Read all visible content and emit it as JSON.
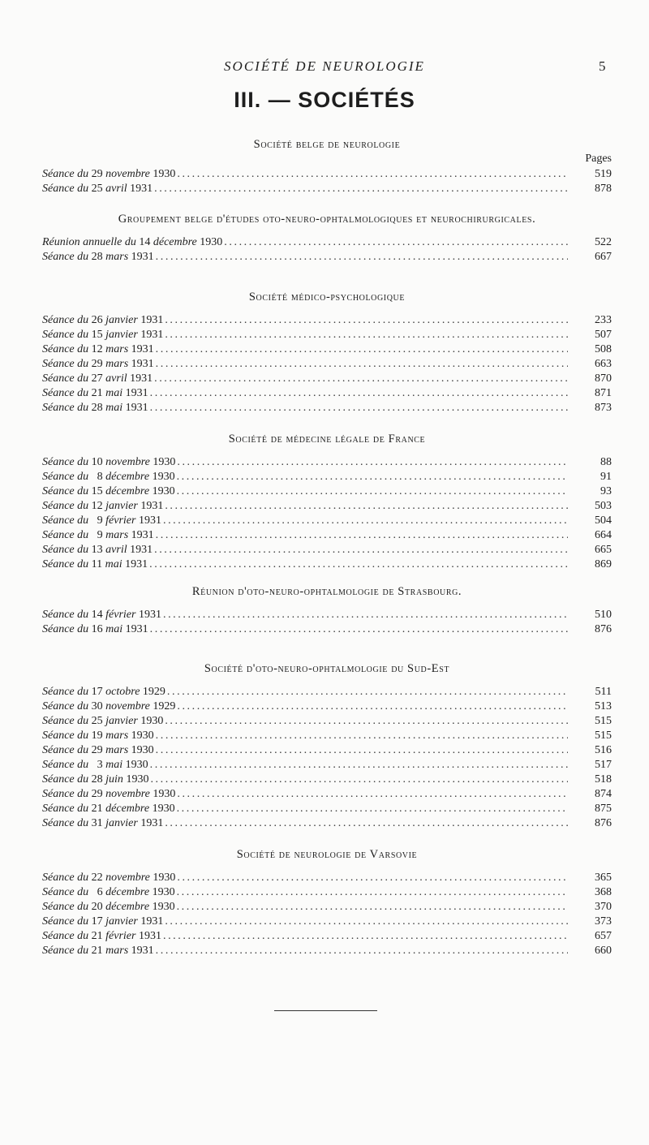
{
  "header": {
    "running_title": "SOCIÉTÉ DE NEUROLOGIE",
    "page_number": "5"
  },
  "title": "III. — SOCIÉTÉS",
  "pages_label": "Pages",
  "sections": [
    {
      "heading": "Société belge de neurologie",
      "show_pages": true,
      "entries": [
        {
          "prefix": "Séance du",
          "day": "29",
          "month": "novembre",
          "year": "1930",
          "page": "519"
        },
        {
          "prefix": "Séance du",
          "day": "25",
          "month": "avril",
          "year": "1931",
          "page": "878"
        }
      ]
    },
    {
      "heading": "Groupement belge d'études oto-neuro-ophtalmologiques et neurochirurgicales.",
      "entries": [
        {
          "prefix": "Réunion annuelle du",
          "day": "14",
          "month": "décembre",
          "year": "1930",
          "page": "522"
        },
        {
          "prefix": "Séance du",
          "day": "28",
          "month": "mars",
          "year": "1931",
          "page": "667"
        }
      ]
    },
    {
      "heading": "Société médico-psychologique",
      "entries": [
        {
          "prefix": "Séance du",
          "day": "26",
          "month": "janvier",
          "year": "1931",
          "page": "233"
        },
        {
          "prefix": "Séance du",
          "day": "15",
          "month": "janvier",
          "year": "1931",
          "page": "507"
        },
        {
          "prefix": "Séance du",
          "day": "12",
          "month": "mars",
          "year": "1931",
          "page": "508"
        },
        {
          "prefix": "Séance du",
          "day": "29",
          "month": "mars",
          "year": "1931",
          "page": "663"
        },
        {
          "prefix": "Séance du",
          "day": "27",
          "month": "avril",
          "year": "1931",
          "page": "870"
        },
        {
          "prefix": "Séance du",
          "day": "21",
          "month": "mai",
          "year": "1931",
          "page": "871"
        },
        {
          "prefix": "Séance du",
          "day": "28",
          "month": "mai",
          "year": "1931",
          "page": "873"
        }
      ]
    },
    {
      "heading": "Société de médecine légale de France",
      "entries": [
        {
          "prefix": "Séance du",
          "day": "10",
          "month": "novembre",
          "year": "1930",
          "page": "88"
        },
        {
          "prefix": "Séance du",
          "day": "8",
          "month": "décembre",
          "year": "1930",
          "page": "91"
        },
        {
          "prefix": "Séance du",
          "day": "15",
          "month": "décembre",
          "year": "1930",
          "page": "93"
        },
        {
          "prefix": "Séance du",
          "day": "12",
          "month": "janvier",
          "year": "1931",
          "page": "503"
        },
        {
          "prefix": "Séance du",
          "day": "9",
          "month": "février",
          "year": "1931",
          "page": "504"
        },
        {
          "prefix": "Séance du",
          "day": "9",
          "month": "mars",
          "year": "1931",
          "page": "664"
        },
        {
          "prefix": "Séance du",
          "day": "13",
          "month": "avril",
          "year": "1931",
          "page": "665"
        },
        {
          "prefix": "Séance du",
          "day": "11",
          "month": "mai",
          "year": "1931",
          "page": "869"
        }
      ]
    },
    {
      "heading": "Réunion d'oto-neuro-ophtalmologie de Strasbourg.",
      "entries": [
        {
          "prefix": "Séance du",
          "day": "14",
          "month": "février",
          "year": "1931",
          "page": "510"
        },
        {
          "prefix": "Séance du",
          "day": "16",
          "month": "mai",
          "year": "1931",
          "page": "876"
        }
      ]
    },
    {
      "heading": "Société d'oto-neuro-ophtalmologie du Sud-Est",
      "entries": [
        {
          "prefix": "Séance du",
          "day": "17",
          "month": "octobre",
          "year": "1929",
          "page": "511"
        },
        {
          "prefix": "Séance du",
          "day": "30",
          "month": "novembre",
          "year": "1929",
          "page": "513"
        },
        {
          "prefix": "Séance du",
          "day": "25",
          "month": "janvier",
          "year": "1930",
          "page": "515"
        },
        {
          "prefix": "Séance du",
          "day": "19",
          "month": "mars",
          "year": "1930",
          "page": "515"
        },
        {
          "prefix": "Séance du",
          "day": "29",
          "month": "mars",
          "year": "1930",
          "page": "516"
        },
        {
          "prefix": "Séance du",
          "day": "3",
          "month": "mai",
          "year": "1930",
          "page": "517"
        },
        {
          "prefix": "Séance du",
          "day": "28",
          "month": "juin",
          "year": "1930",
          "page": "518"
        },
        {
          "prefix": "Séance du",
          "day": "29",
          "month": "novembre",
          "year": "1930",
          "page": "874"
        },
        {
          "prefix": "Séance du",
          "day": "21",
          "month": "décembre",
          "year": "1930",
          "page": "875"
        },
        {
          "prefix": "Séance du",
          "day": "31",
          "month": "janvier",
          "year": "1931",
          "page": "876"
        }
      ]
    },
    {
      "heading": "Société de neurologie de Varsovie",
      "entries": [
        {
          "prefix": "Séance du",
          "day": "22",
          "month": "novembre",
          "year": "1930",
          "page": "365"
        },
        {
          "prefix": "Séance du",
          "day": "6",
          "month": "décembre",
          "year": "1930",
          "page": "368"
        },
        {
          "prefix": "Séance du",
          "day": "20",
          "month": "décembre",
          "year": "1930",
          "page": "370"
        },
        {
          "prefix": "Séance du",
          "day": "17",
          "month": "janvier",
          "year": "1931",
          "page": "373"
        },
        {
          "prefix": "Séance du",
          "day": "21",
          "month": "février",
          "year": "1931",
          "page": "657"
        },
        {
          "prefix": "Séance du",
          "day": "21",
          "month": "mars",
          "year": "1931",
          "page": "660"
        }
      ]
    }
  ]
}
